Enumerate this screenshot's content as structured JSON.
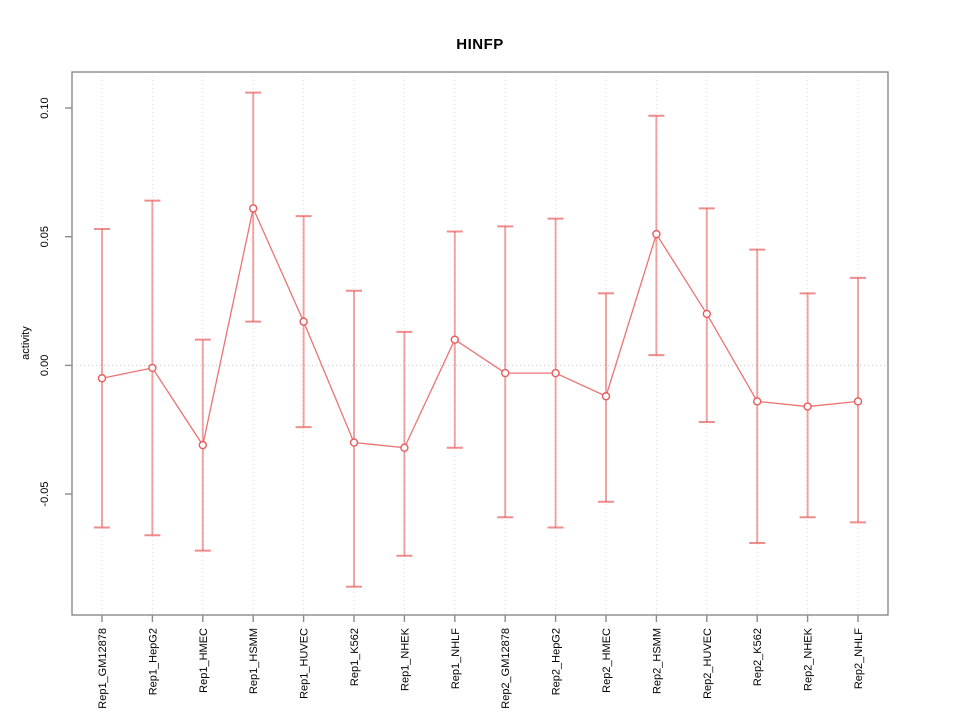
{
  "chart_data": {
    "type": "line",
    "title": "HINFP",
    "ylabel": "activity",
    "xlabel": "",
    "categories": [
      "Rep1_GM12878",
      "Rep1_HepG2",
      "Rep1_HMEC",
      "Rep1_HSMM",
      "Rep1_HUVEC",
      "Rep1_K562",
      "Rep1_NHEK",
      "Rep1_NHLF",
      "Rep2_GM12878",
      "Rep2_HepG2",
      "Rep2_HMEC",
      "Rep2_HSMM",
      "Rep2_HUVEC",
      "Rep2_K562",
      "Rep2_NHEK",
      "Rep2_NHLF"
    ],
    "series": [
      {
        "name": "activity",
        "values": [
          -0.005,
          -0.001,
          -0.031,
          0.061,
          0.017,
          -0.03,
          -0.032,
          0.01,
          -0.003,
          -0.003,
          -0.012,
          0.051,
          0.02,
          -0.014,
          -0.016,
          -0.014
        ],
        "error_low": [
          -0.063,
          -0.066,
          -0.072,
          0.017,
          -0.024,
          -0.086,
          -0.074,
          -0.032,
          -0.059,
          -0.063,
          -0.053,
          0.004,
          -0.022,
          -0.069,
          -0.059,
          -0.061
        ],
        "error_high": [
          0.053,
          0.064,
          0.01,
          0.106,
          0.058,
          0.029,
          0.013,
          0.052,
          0.054,
          0.057,
          0.028,
          0.097,
          0.061,
          0.045,
          0.028,
          0.034
        ]
      }
    ],
    "yticks": [
      -0.05,
      0.0,
      0.05,
      0.1
    ],
    "ytick_labels": [
      "-0.05",
      "0.00",
      "0.05",
      "0.10"
    ],
    "ylim": [
      -0.097,
      0.114
    ],
    "grid": {
      "vertical": "dotted at each category",
      "horizontal": "dotted at y=0"
    },
    "legend": "none",
    "marker": "open-circle",
    "colors": {
      "series": "#e85b5b",
      "series_light": "#f09090",
      "grid": "#dcdcdc",
      "zero_line": "#c9c9c9",
      "axis": "#8a8a8a",
      "text": "#000000",
      "background": "#ffffff"
    }
  }
}
